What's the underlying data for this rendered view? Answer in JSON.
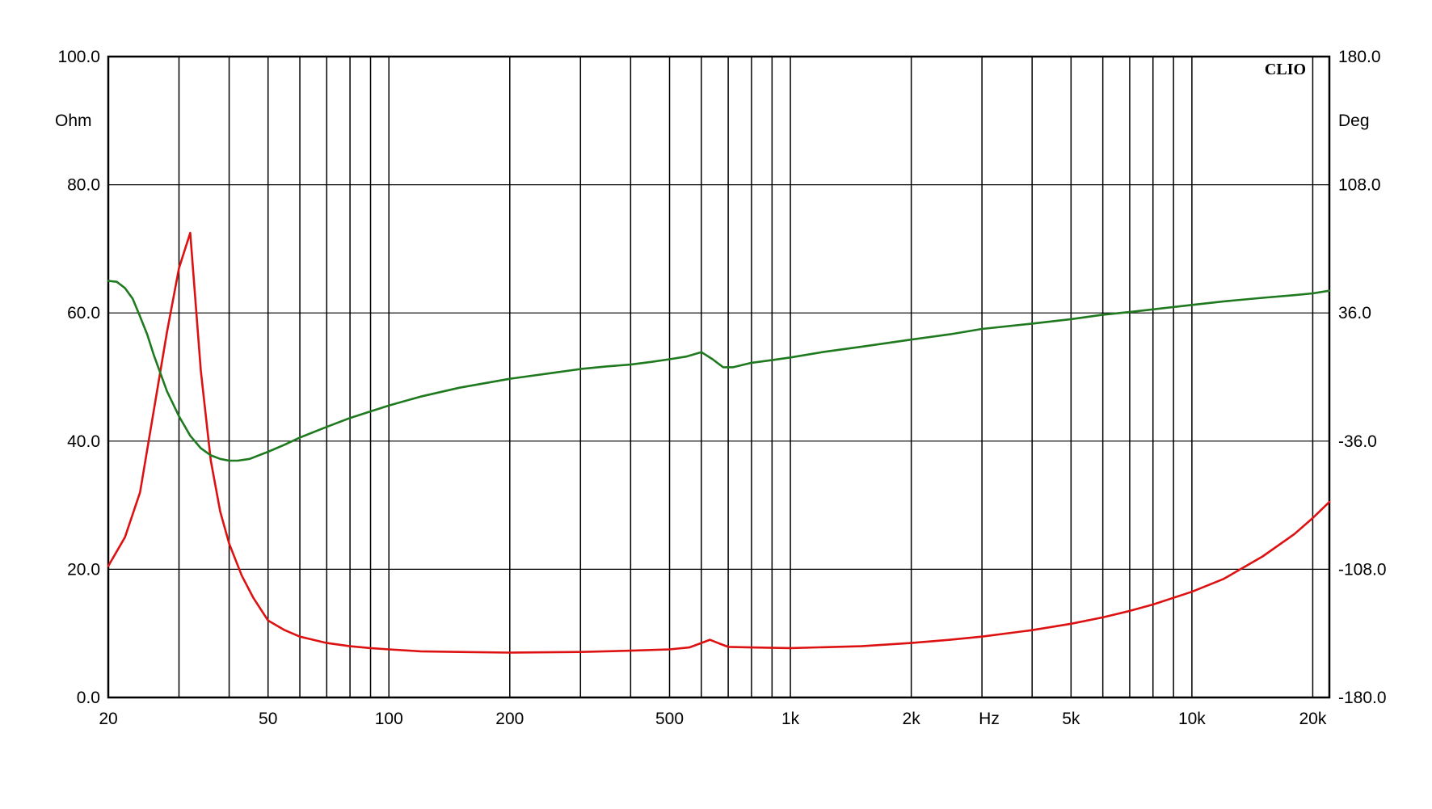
{
  "chart_data": {
    "type": "line",
    "brand": "CLIO",
    "x_axis": {
      "scale": "log",
      "range": [
        20,
        22000
      ],
      "unit": "Hz",
      "tick_labels": [
        {
          "value": 20,
          "label": "20"
        },
        {
          "value": 50,
          "label": "50"
        },
        {
          "value": 100,
          "label": "100"
        },
        {
          "value": 200,
          "label": "200"
        },
        {
          "value": 500,
          "label": "500"
        },
        {
          "value": 1000,
          "label": "1k"
        },
        {
          "value": 2000,
          "label": "2k"
        },
        {
          "value": 5000,
          "label": "5k"
        },
        {
          "value": 10000,
          "label": "10k"
        },
        {
          "value": 20000,
          "label": "20k"
        }
      ],
      "gridlines": [
        30,
        40,
        50,
        60,
        70,
        80,
        90,
        100,
        200,
        300,
        400,
        500,
        600,
        700,
        800,
        900,
        1000,
        2000,
        3000,
        4000,
        5000,
        6000,
        7000,
        8000,
        9000,
        10000,
        20000
      ]
    },
    "y_left": {
      "label": "Ohm",
      "range": [
        0,
        100
      ],
      "ticks": [
        "0.0",
        "20.0",
        "40.0",
        "60.0",
        "80.0",
        "100.0"
      ],
      "tick_values": [
        0,
        20,
        40,
        60,
        80,
        100
      ]
    },
    "y_right": {
      "label": "Deg",
      "range": [
        -180,
        180
      ],
      "ticks": [
        "-180.0",
        "-108.0",
        "-36.0",
        "36.0",
        "108.0",
        "180.0"
      ],
      "tick_values": [
        -180,
        -108,
        -36,
        36,
        108,
        180
      ]
    },
    "grid": true,
    "series": [
      {
        "axis": "left",
        "color": "#dd1111",
        "points": [
          [
            20,
            20.5
          ],
          [
            22,
            25
          ],
          [
            24,
            32
          ],
          [
            26,
            45
          ],
          [
            28,
            57
          ],
          [
            30,
            67
          ],
          [
            32,
            72.5
          ],
          [
            34,
            51
          ],
          [
            36,
            37
          ],
          [
            38,
            29
          ],
          [
            40,
            24
          ],
          [
            43,
            19
          ],
          [
            46,
            15.5
          ],
          [
            50,
            12
          ],
          [
            55,
            10.5
          ],
          [
            60,
            9.5
          ],
          [
            70,
            8.5
          ],
          [
            80,
            8
          ],
          [
            90,
            7.7
          ],
          [
            100,
            7.5
          ],
          [
            120,
            7.2
          ],
          [
            150,
            7.1
          ],
          [
            200,
            7.0
          ],
          [
            300,
            7.1
          ],
          [
            400,
            7.3
          ],
          [
            500,
            7.5
          ],
          [
            560,
            7.8
          ],
          [
            600,
            8.5
          ],
          [
            630,
            9.0
          ],
          [
            660,
            8.5
          ],
          [
            700,
            7.9
          ],
          [
            800,
            7.8
          ],
          [
            1000,
            7.7
          ],
          [
            1500,
            8.0
          ],
          [
            2000,
            8.5
          ],
          [
            2500,
            9.0
          ],
          [
            3000,
            9.5
          ],
          [
            4000,
            10.5
          ],
          [
            5000,
            11.5
          ],
          [
            6000,
            12.5
          ],
          [
            7000,
            13.5
          ],
          [
            8000,
            14.5
          ],
          [
            10000,
            16.5
          ],
          [
            12000,
            18.5
          ],
          [
            15000,
            22
          ],
          [
            18000,
            25.5
          ],
          [
            20000,
            28
          ],
          [
            22000,
            30.5
          ]
        ]
      },
      {
        "axis": "right",
        "color": "#1f7a1f",
        "points": [
          [
            20,
            54
          ],
          [
            21,
            53.5
          ],
          [
            22,
            50
          ],
          [
            23,
            44
          ],
          [
            24,
            34
          ],
          [
            25,
            24
          ],
          [
            26,
            12
          ],
          [
            28,
            -8
          ],
          [
            30,
            -22
          ],
          [
            32,
            -33
          ],
          [
            34,
            -40
          ],
          [
            36,
            -44
          ],
          [
            38,
            -46
          ],
          [
            40,
            -47
          ],
          [
            42,
            -47
          ],
          [
            45,
            -46
          ],
          [
            50,
            -42
          ],
          [
            55,
            -38
          ],
          [
            60,
            -34
          ],
          [
            70,
            -28
          ],
          [
            80,
            -23
          ],
          [
            100,
            -16
          ],
          [
            120,
            -11
          ],
          [
            150,
            -6
          ],
          [
            200,
            -1
          ],
          [
            250,
            2
          ],
          [
            300,
            4.5
          ],
          [
            350,
            6
          ],
          [
            400,
            7
          ],
          [
            450,
            8.5
          ],
          [
            500,
            10
          ],
          [
            550,
            11.5
          ],
          [
            600,
            14
          ],
          [
            640,
            10
          ],
          [
            680,
            5.5
          ],
          [
            720,
            5.5
          ],
          [
            800,
            8
          ],
          [
            900,
            9.5
          ],
          [
            1000,
            11
          ],
          [
            1200,
            14
          ],
          [
            1500,
            17
          ],
          [
            2000,
            21
          ],
          [
            2500,
            24
          ],
          [
            3000,
            27
          ],
          [
            4000,
            30
          ],
          [
            5000,
            32.5
          ],
          [
            6000,
            35
          ],
          [
            7000,
            36.5
          ],
          [
            8000,
            38
          ],
          [
            10000,
            40.5
          ],
          [
            12000,
            42.5
          ],
          [
            15000,
            44.5
          ],
          [
            18000,
            46
          ],
          [
            20000,
            47
          ],
          [
            22000,
            48.5
          ]
        ]
      }
    ]
  }
}
